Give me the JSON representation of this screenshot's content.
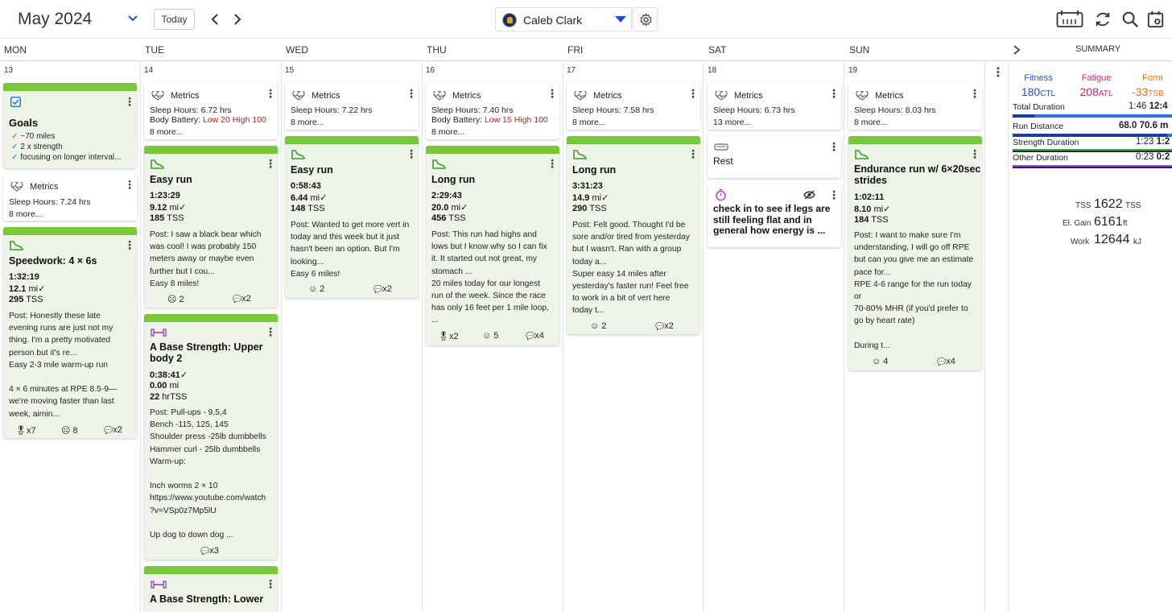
{
  "header": {
    "month": "May 2024",
    "today_label": "Today",
    "user_name": "Caleb Clark"
  },
  "days": [
    {
      "name": "MON",
      "num": "13"
    },
    {
      "name": "TUE",
      "num": "14"
    },
    {
      "name": "WED",
      "num": "15"
    },
    {
      "name": "THU",
      "num": "16"
    },
    {
      "name": "FRI",
      "num": "17"
    },
    {
      "name": "SAT",
      "num": "18"
    },
    {
      "name": "SUN",
      "num": "19"
    }
  ],
  "summary_label": "SUMMARY",
  "metrics_label": "Metrics",
  "goals": {
    "title": "Goals",
    "items": [
      "~70 miles",
      "2 x strength",
      "focusing on longer interval..."
    ]
  },
  "metrics": {
    "mon": {
      "sleep": "Sleep Hours: 7.24 hrs",
      "more": "8 more..."
    },
    "tue": {
      "sleep": "Sleep Hours: 6.72 hrs",
      "battery_prefix": "Body Battery: ",
      "battery": "Low 20 High 100",
      "more": "8 more..."
    },
    "wed": {
      "sleep": "Sleep Hours: 7.22 hrs",
      "more": "8 more..."
    },
    "thu": {
      "sleep": "Sleep Hours: 7.40 hrs",
      "battery_prefix": "Body Battery: ",
      "battery": "Low 15 High 100",
      "more": "8 more..."
    },
    "fri": {
      "sleep": "Sleep Hours: 7.58 hrs",
      "more": "8 more..."
    },
    "sat": {
      "sleep": "Sleep Hours: 6.73 hrs",
      "more": "13 more..."
    },
    "sun": {
      "sleep": "Sleep Hours: 8.03 hrs",
      "more": "8 more..."
    }
  },
  "workouts": {
    "mon_speed": {
      "title": "Speedwork: 4 × 6s",
      "duration": "1:32:19",
      "distance": "12.1",
      "dist_unit": " mi",
      "tss": "295",
      "tss_unit": " TSS",
      "post": "Post: Honestly these late\nevening runs are just not my\nthing. I'm a pretty motivated\nperson but it's re...\nEasy 2-3 mile warm-up run\n\n4 × 6 minutes at RPE 8.5-9—\nwe're moving faster than last\nweek, aimin...",
      "medals": "x7",
      "faces": "8",
      "comments": "x2"
    },
    "tue_easy": {
      "title": "Easy run",
      "duration": "1:23:29",
      "distance": "9.12",
      "dist_unit": " mi",
      "tss": "185",
      "tss_unit": " TSS",
      "post": "Post: I saw a black bear which\nwas cool! I was probably 150\nmeters away or maybe even\nfurther but I cou...\nEasy 8 miles!",
      "faces": "2",
      "comments": "x2"
    },
    "tue_strength": {
      "title": "A Base Strength: Upper\nbody 2",
      "duration": "0:38:41",
      "distance": "0.00",
      "dist_unit": " mi",
      "tss": "22",
      "tss_unit": " hrTSS",
      "post": "Post: Pull-ups - 9,5,4\nBench -115, 125, 145\nShoulder press -25lb dumbbells\nHammer curl - 25lb dumbbells\nWarm-up:\n\nInch worms 2 × 10\nhttps://www.youtube.com/watch\n?v=VSp0z7Mp5lU\n\nUp dog to down dog ...",
      "comments": "x3"
    },
    "tue_strength2": {
      "title": "A Base Strength: Lower"
    },
    "wed_easy": {
      "title": "Easy run",
      "duration": "0:58:43",
      "distance": "6.44",
      "dist_unit": " mi",
      "tss": "148",
      "tss_unit": " TSS",
      "post": "Post: Wanted to get more vert in\ntoday and this week but it just\nhasn't been an option. But I'm\nlooking...\nEasy 6 miles!",
      "faces": "2",
      "comments": "x2"
    },
    "thu_long": {
      "title": "Long run",
      "duration": "2:29:43",
      "distance": "20.0",
      "dist_unit": " mi",
      "tss": "456",
      "tss_unit": " TSS",
      "post": "Post: This run had highs and\nlows but I know why so I can fix\nit. It started out not great, my\nstomach ...\n20 miles today for our longest\nrun of the week. Since the race\nhas only 16 feet per 1 mile loop,\n...",
      "medals": "x2",
      "faces": "5",
      "comments": "x4"
    },
    "fri_long": {
      "title": "Long run",
      "duration": "3:31:23",
      "distance": "14.9",
      "dist_unit": " mi",
      "tss": "290",
      "tss_unit": " TSS",
      "post": "Post: Felt good. Thought I'd be\nsore and/or tired from yesterday\nbut I wasn't. Ran with a group\ntoday a...\nSuper easy 14 miles after\nyesterday's faster run! Feel free\nto work in a bit of vert here\ntoday t...",
      "faces": "2",
      "comments": "x2"
    },
    "sat_rest": {
      "title": "Rest"
    },
    "sat_note": {
      "text": "check in to see if legs are\nstill feeling flat and in\ngeneral how energy is ..."
    },
    "sun_endurance": {
      "title": "Endurance run w/ 6×20sec\nstrides",
      "duration": "1:02:11",
      "distance": "8.10",
      "dist_unit": " mi",
      "tss": "184",
      "tss_unit": " TSS",
      "post": "Post: I want to make sure I'm\nunderstanding, I will go off RPE\nbut can you give me an estimate\npace for...\nRPE 4-6 range for the run today\nor\n70-80% MHR (if you'd prefer to\ngo by heart rate)\n\nDuring t...",
      "faces": "4",
      "comments": "x4"
    }
  },
  "summary": {
    "fitness_label": "Fitness",
    "fitness_value": "180",
    "fitness_unit": "CTL",
    "fatigue_label": "Fatigue",
    "fatigue_value": "208",
    "fatigue_unit": "ATL",
    "form_label": "Form",
    "form_value": "-33",
    "form_unit": "TSB",
    "rows": [
      {
        "label": "Total Duration",
        "value": "1:46",
        "value2": "12:4",
        "color": "#2f6fe8",
        "done": 0.14
      },
      {
        "label": "Run Distance",
        "value": "68.0",
        "value2": "70.6 m",
        "color": "#2f6fe8",
        "done": 0.97
      },
      {
        "label": "Strength Duration",
        "value": "1:23",
        "value2": "1:2",
        "color": "#2fb52f",
        "done": 1.0
      },
      {
        "label": "Other Duration",
        "value": "0:23",
        "value2": "0:2",
        "color": "#a044d6",
        "done": 1.0
      }
    ],
    "tss_label": "TSS",
    "tss_value": "1622",
    "tss_unit": "TSS",
    "elev_label": "El. Gain",
    "elev_value": "6161",
    "elev_unit": "ft",
    "work_label": "Work",
    "work_value": "12644",
    "work_unit": "kJ"
  }
}
